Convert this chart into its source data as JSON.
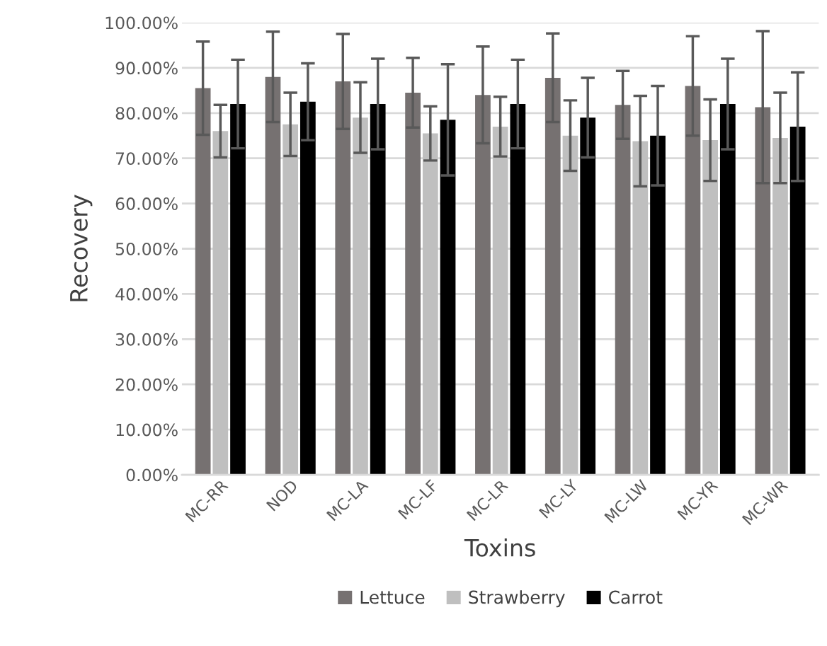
{
  "chart_data": {
    "type": "bar",
    "xlabel": "Toxins",
    "ylabel": "Recovery",
    "categories": [
      "MC-RR",
      "NOD",
      "MC-LA",
      "MC-LF",
      "MC-LR",
      "MC-LY",
      "MC-LW",
      "MC-YR",
      "MC-WR"
    ],
    "series": [
      {
        "name": "Lettuce",
        "color": "#767171",
        "values": [
          85.5,
          88,
          87,
          84.5,
          84,
          87.8,
          81.8,
          86,
          81.3
        ],
        "errors": [
          10.3,
          10,
          10.5,
          7.7,
          10.7,
          9.8,
          7.5,
          11,
          16.8
        ]
      },
      {
        "name": "Strawberry",
        "color": "#bfbfbf",
        "values": [
          76,
          77.5,
          79,
          75.5,
          77,
          75,
          73.8,
          74,
          74.5
        ],
        "errors": [
          5.8,
          7,
          7.8,
          6,
          6.6,
          7.8,
          10,
          9,
          10
        ]
      },
      {
        "name": "Carrot",
        "color": "#000000",
        "values": [
          82,
          82.5,
          82,
          78.5,
          82,
          79,
          75,
          82,
          77
        ],
        "errors": [
          9.8,
          8.5,
          10,
          12.3,
          9.8,
          8.8,
          11,
          10,
          12
        ]
      }
    ],
    "ylim": [
      0,
      100
    ],
    "yticks": [
      {
        "value": 0,
        "label": "0.00%"
      },
      {
        "value": 10,
        "label": "10.00%"
      },
      {
        "value": 20,
        "label": "20.00%"
      },
      {
        "value": 30,
        "label": "30.00%"
      },
      {
        "value": 40,
        "label": "40.00%"
      },
      {
        "value": 50,
        "label": "50.00%"
      },
      {
        "value": 60,
        "label": "60.00%"
      },
      {
        "value": 70,
        "label": "70.00%"
      },
      {
        "value": 80,
        "label": "80.00%"
      },
      {
        "value": 90,
        "label": "90.00%"
      },
      {
        "value": 100,
        "label": "100.00%"
      }
    ],
    "grid": "y",
    "legend": "bottom"
  }
}
